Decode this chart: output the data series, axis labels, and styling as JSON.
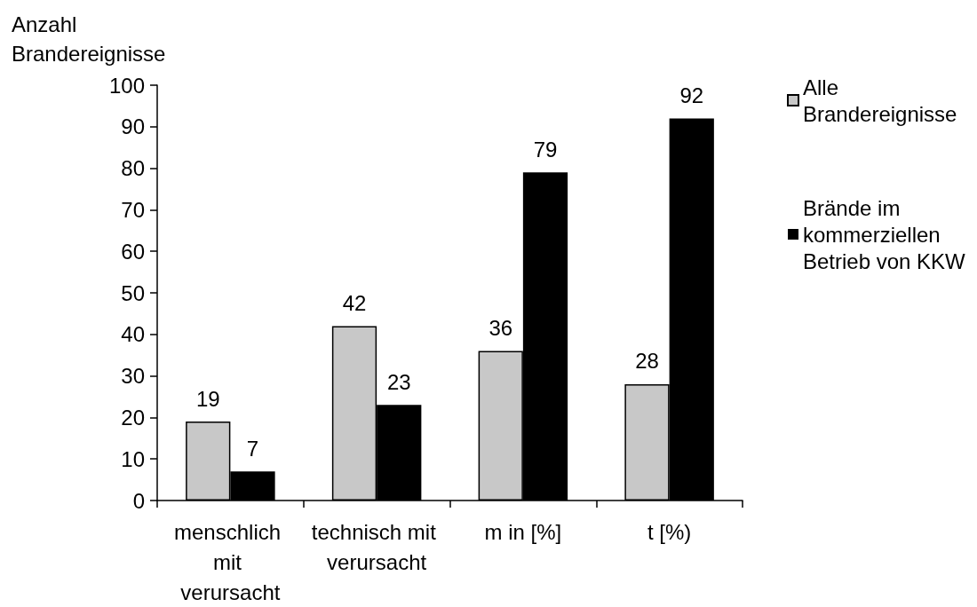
{
  "chart_data": {
    "type": "bar",
    "ylabel": "Anzahl Brandereignisse",
    "categories": [
      "menschlich mit verursacht",
      "technisch mit verursacht",
      "m in [%]",
      "t [%)"
    ],
    "series": [
      {
        "name": "Alle Brandereignisse",
        "color": "#c8c8c8",
        "values": [
          19,
          42,
          36,
          28
        ]
      },
      {
        "name": "Brände im kommerziellen Betrieb von KKW",
        "color": "#000000",
        "values": [
          7,
          23,
          79,
          92
        ]
      }
    ],
    "ylim": [
      0,
      100
    ],
    "yticks": [
      0,
      10,
      20,
      30,
      40,
      50,
      60,
      70,
      80,
      90,
      100
    ],
    "grid": false,
    "legend": "right",
    "data_labels": true
  }
}
